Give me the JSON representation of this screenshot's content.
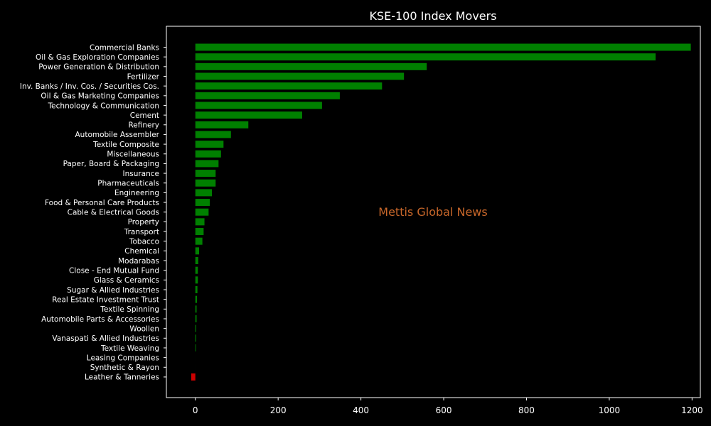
{
  "chart_data": {
    "type": "bar",
    "orientation": "horizontal",
    "title": "KSE-100 Index Movers",
    "xlabel": "",
    "ylabel": "",
    "xlim": [
      -70,
      1220
    ],
    "xticks": [
      0,
      200,
      400,
      600,
      800,
      1000,
      1200
    ],
    "grid": false,
    "watermark": "Mettis Global News",
    "colors": {
      "background": "#000000",
      "positive": "#008000",
      "negative": "#cc0000",
      "watermark": "#c8672a",
      "axis": "#ffffff"
    },
    "categories": [
      "Commercial Banks",
      "Oil & Gas Exploration Companies",
      "Power Generation & Distribution",
      "Fertilizer",
      "Inv. Banks / Inv. Cos. / Securities Cos.",
      "Oil & Gas Marketing Companies",
      "Technology & Communication",
      "Cement",
      "Refinery",
      "Automobile Assembler",
      "Textile Composite",
      "Miscellaneous",
      "Paper, Board & Packaging",
      "Insurance",
      "Pharmaceuticals",
      "Engineering",
      "Food & Personal Care Products",
      "Cable & Electrical Goods",
      "Property",
      "Transport",
      "Tobacco",
      "Chemical",
      "Modarabas",
      "Close - End Mutual Fund",
      "Glass & Ceramics",
      "Sugar & Allied Industries",
      "Real Estate Investment Trust",
      "Textile Spinning",
      "Automobile Parts & Accessories",
      "Woollen",
      "Vanaspati & Allied Industries",
      "Textile Weaving",
      "Leasing Companies",
      "Synthetic & Rayon",
      "Leather & Tanneries"
    ],
    "values": [
      1197,
      1112,
      559,
      504,
      451,
      349,
      306,
      258,
      128,
      86,
      68,
      62,
      56,
      49,
      49,
      40,
      35,
      32,
      22,
      20,
      17,
      9,
      7,
      6,
      6,
      5,
      4,
      3,
      3,
      2,
      2,
      1.5,
      0,
      0,
      -10
    ]
  }
}
